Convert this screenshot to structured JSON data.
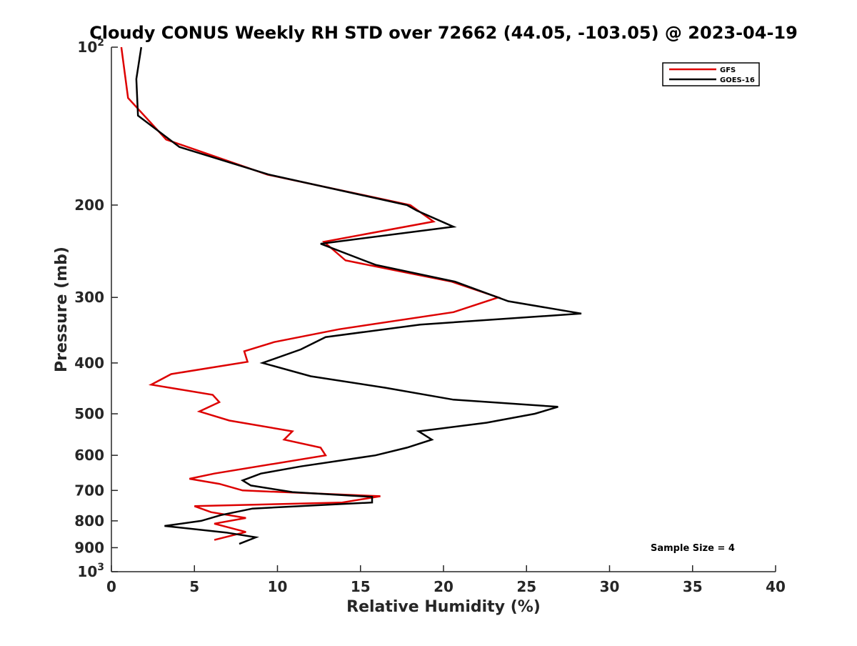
{
  "chart_data": {
    "type": "line",
    "title": "Cloudy CONUS Weekly RH STD over 72662 (44.05, -103.05) @ 2023-04-19",
    "xlabel": "Relative Humidity (%)",
    "ylabel": "Pressure (mb)",
    "xlim": [
      0,
      40
    ],
    "ylim": [
      100,
      1000
    ],
    "y_scale": "log",
    "y_reversed": true,
    "grid": false,
    "legend_position": "top-right",
    "x_ticks": [
      0,
      5,
      10,
      15,
      20,
      25,
      30,
      35,
      40
    ],
    "x_tick_labels": [
      "0",
      "5",
      "10",
      "15",
      "20",
      "25",
      "30",
      "35",
      "40"
    ],
    "y_ticks": [
      100,
      200,
      300,
      400,
      500,
      600,
      700,
      800,
      900,
      1000
    ],
    "y_tick_labels": [
      {
        "base": "10",
        "exp": "2"
      },
      {
        "base": "200",
        "exp": ""
      },
      {
        "base": "300",
        "exp": ""
      },
      {
        "base": "400",
        "exp": ""
      },
      {
        "base": "500",
        "exp": ""
      },
      {
        "base": "600",
        "exp": ""
      },
      {
        "base": "700",
        "exp": ""
      },
      {
        "base": "800",
        "exp": ""
      },
      {
        "base": "900",
        "exp": ""
      },
      {
        "base": "10",
        "exp": "3"
      }
    ],
    "annotation": "Sample Size = 4",
    "series": [
      {
        "name": "GFS",
        "color": "#dd0000",
        "points": [
          [
            0.6,
            100
          ],
          [
            1.0,
            125
          ],
          [
            3.3,
            150
          ],
          [
            9.4,
            175
          ],
          [
            18.0,
            200
          ],
          [
            19.4,
            215
          ],
          [
            12.8,
            235
          ],
          [
            14.1,
            255
          ],
          [
            20.5,
            280
          ],
          [
            23.3,
            300
          ],
          [
            20.6,
            320
          ],
          [
            13.7,
            345
          ],
          [
            9.8,
            365
          ],
          [
            8.0,
            380
          ],
          [
            8.2,
            398
          ],
          [
            3.6,
            420
          ],
          [
            2.4,
            440
          ],
          [
            6.1,
            460
          ],
          [
            6.5,
            475
          ],
          [
            5.3,
            495
          ],
          [
            7.1,
            515
          ],
          [
            10.9,
            540
          ],
          [
            10.4,
            560
          ],
          [
            12.6,
            580
          ],
          [
            12.9,
            600
          ],
          [
            6.2,
            650
          ],
          [
            4.7,
            665
          ],
          [
            6.5,
            680
          ],
          [
            7.9,
            700
          ],
          [
            16.2,
            718
          ],
          [
            13.9,
            738
          ],
          [
            5.0,
            750
          ],
          [
            6.0,
            770
          ],
          [
            8.1,
            790
          ],
          [
            6.2,
            810
          ],
          [
            8.1,
            840
          ],
          [
            6.2,
            870
          ]
        ]
      },
      {
        "name": "GOES-16",
        "color": "#000000",
        "points": [
          [
            1.8,
            100
          ],
          [
            1.5,
            115
          ],
          [
            1.6,
            135
          ],
          [
            4.1,
            155
          ],
          [
            9.5,
            175
          ],
          [
            17.8,
            200
          ],
          [
            18.4,
            205
          ],
          [
            20.6,
            220
          ],
          [
            12.6,
            237
          ],
          [
            15.9,
            260
          ],
          [
            20.7,
            280
          ],
          [
            23.9,
            305
          ],
          [
            28.3,
            322
          ],
          [
            18.6,
            338
          ],
          [
            12.9,
            357
          ],
          [
            11.4,
            377
          ],
          [
            9.1,
            400
          ],
          [
            12.0,
            424
          ],
          [
            16.5,
            446
          ],
          [
            20.6,
            470
          ],
          [
            26.9,
            485
          ],
          [
            25.5,
            500
          ],
          [
            22.6,
            520
          ],
          [
            18.5,
            540
          ],
          [
            19.3,
            560
          ],
          [
            17.8,
            580
          ],
          [
            15.9,
            600
          ],
          [
            11.4,
            630
          ],
          [
            9.0,
            650
          ],
          [
            7.9,
            670
          ],
          [
            8.4,
            685
          ],
          [
            10.9,
            705
          ],
          [
            15.7,
            720
          ],
          [
            15.7,
            738
          ],
          [
            8.5,
            758
          ],
          [
            6.6,
            780
          ],
          [
            5.4,
            800
          ],
          [
            3.2,
            818
          ],
          [
            6.9,
            842
          ],
          [
            8.7,
            860
          ],
          [
            7.7,
            885
          ]
        ]
      }
    ]
  }
}
